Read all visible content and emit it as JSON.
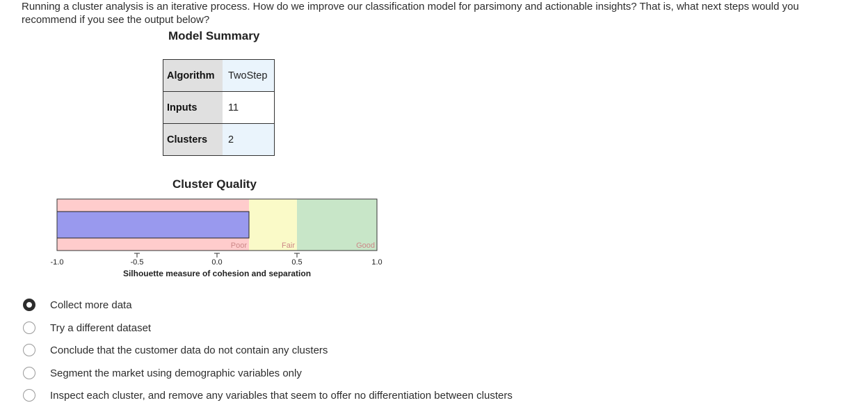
{
  "question": "Running a cluster analysis is an iterative process. How do we improve our classification model for parsimony and actionable insights? That is, what next steps would you recommend if you see the output below?",
  "model_summary": {
    "title": "Model Summary",
    "rows": [
      {
        "key": "Algorithm",
        "value": "TwoStep"
      },
      {
        "key": "Inputs",
        "value": "11"
      },
      {
        "key": "Clusters",
        "value": "2"
      }
    ]
  },
  "chart_data": {
    "type": "bar",
    "title": "Cluster Quality",
    "xlabel": "Silhouette measure of cohesion and separation",
    "xlim": [
      -1.0,
      1.0
    ],
    "ticks": [
      "-1.0",
      "-0.5",
      "0.0",
      "0.5",
      "1.0"
    ],
    "value": 0.2,
    "bands": [
      {
        "label": "Poor",
        "from": -1.0,
        "to": 0.2,
        "color": "#ffcccc"
      },
      {
        "label": "Fair",
        "from": 0.2,
        "to": 0.5,
        "color": "#fafac8"
      },
      {
        "label": "Good",
        "from": 0.5,
        "to": 1.0,
        "color": "#c8e6c8"
      }
    ],
    "bar_color": "#9999ee",
    "band_label_color": "#cc8888"
  },
  "options": [
    {
      "label": "Collect more data",
      "selected": true
    },
    {
      "label": "Try a different dataset",
      "selected": false
    },
    {
      "label": "Conclude that the customer data do not contain any clusters",
      "selected": false
    },
    {
      "label": "Segment the market using demographic variables only",
      "selected": false
    },
    {
      "label": "Inspect each cluster, and remove any variables that seem to offer no differentiation between clusters",
      "selected": false
    }
  ]
}
